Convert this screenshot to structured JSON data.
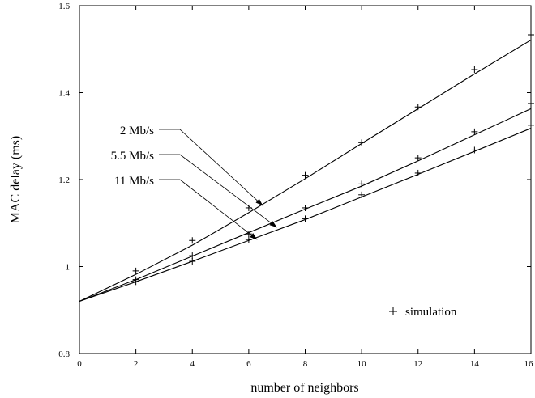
{
  "chart_data": {
    "type": "line",
    "title": "",
    "xlabel": "number of neighbors",
    "ylabel": "MAC delay (ms)",
    "xlim": [
      0,
      16
    ],
    "ylim": [
      0.8,
      1.6
    ],
    "x_ticks": [
      0,
      2,
      4,
      6,
      8,
      10,
      12,
      14,
      16
    ],
    "x_tick_labels": [
      "0",
      "2",
      "4",
      "6",
      "8",
      "10",
      "12",
      "14",
      "16"
    ],
    "y_ticks": [
      0.8,
      1.0,
      1.2,
      1.4,
      1.6
    ],
    "y_tick_labels": [
      "0.8",
      "1",
      "1.2",
      "1.4",
      "1.6"
    ],
    "grid": false,
    "series": [
      {
        "name": "2 Mb/s",
        "analytical": {
          "x": [
            0,
            2,
            4,
            6,
            8,
            10,
            12,
            14,
            16
          ],
          "y": [
            0.92,
            0.982,
            1.049,
            1.124,
            1.202,
            1.283,
            1.363,
            1.443,
            1.521
          ]
        },
        "simulation": {
          "x": [
            2,
            4,
            6,
            8,
            10,
            12,
            14,
            16
          ],
          "y": [
            0.99,
            1.06,
            1.135,
            1.21,
            1.285,
            1.367,
            1.453,
            1.533
          ]
        }
      },
      {
        "name": "5.5 Mb/s",
        "analytical": {
          "x": [
            0,
            2,
            4,
            6,
            8,
            10,
            12,
            14,
            16
          ],
          "y": [
            0.92,
            0.97,
            1.024,
            1.078,
            1.132,
            1.185,
            1.243,
            1.303,
            1.363
          ]
        },
        "simulation": {
          "x": [
            2,
            4,
            6,
            8,
            10,
            12,
            14,
            16
          ],
          "y": [
            0.97,
            1.025,
            1.075,
            1.135,
            1.19,
            1.25,
            1.31,
            1.375
          ]
        }
      },
      {
        "name": "11 Mb/s",
        "analytical": {
          "x": [
            0,
            2,
            4,
            6,
            8,
            10,
            12,
            14,
            16
          ],
          "y": [
            0.92,
            0.965,
            1.012,
            1.06,
            1.108,
            1.16,
            1.212,
            1.265,
            1.318
          ]
        },
        "simulation": {
          "x": [
            2,
            4,
            6,
            8,
            10,
            12,
            14,
            16
          ],
          "y": [
            0.965,
            1.012,
            1.062,
            1.11,
            1.165,
            1.215,
            1.268,
            1.325
          ]
        }
      }
    ],
    "annotations": [
      {
        "text": "2 Mb/s",
        "series": "2 Mb/s",
        "arrow_to": {
          "x": 6.5,
          "y": 1.14
        }
      },
      {
        "text": "5.5 Mb/s",
        "series": "5.5 Mb/s",
        "arrow_to": {
          "x": 7.0,
          "y": 1.09
        }
      },
      {
        "text": "11 Mb/s",
        "series": "11 Mb/s",
        "arrow_to": {
          "x": 6.3,
          "y": 1.062
        }
      }
    ],
    "legend": {
      "position": "bottom-right",
      "marker": "+",
      "label": "simulation"
    }
  }
}
